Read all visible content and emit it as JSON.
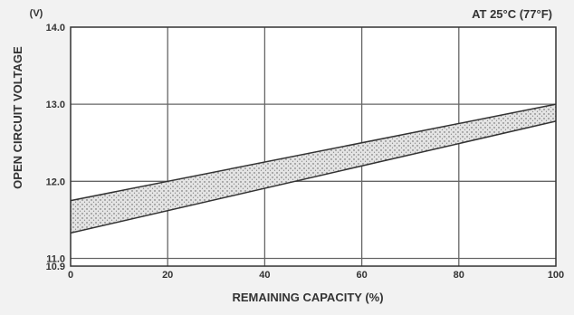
{
  "chart_data": {
    "type": "area",
    "title": "AT 25°C (77°F)",
    "xlabel": "REMAINING CAPACITY (%)",
    "ylabel": "OPEN CIRCUIT VOLTAGE",
    "yunit": "(V)",
    "xlim": [
      0,
      100
    ],
    "ylim": [
      10.9,
      14.0
    ],
    "x_ticks": [
      {
        "value": 0,
        "label": "0"
      },
      {
        "value": 20,
        "label": "20"
      },
      {
        "value": 40,
        "label": "40"
      },
      {
        "value": 60,
        "label": "60"
      },
      {
        "value": 80,
        "label": "80"
      },
      {
        "value": 100,
        "label": "100"
      }
    ],
    "y_ticks": [
      {
        "value": 10.9,
        "label": "10.9"
      },
      {
        "value": 11.0,
        "label": "11.0"
      },
      {
        "value": 12.0,
        "label": "12.0"
      },
      {
        "value": 13.0,
        "label": "13.0"
      },
      {
        "value": 14.0,
        "label": "14.0"
      }
    ],
    "band": {
      "x": [
        0,
        100
      ],
      "upper": [
        11.75,
        13.0
      ],
      "lower": [
        11.33,
        12.78
      ]
    },
    "grid": true,
    "colors": {
      "band_fill": "#dcdcdc",
      "line": "#333333",
      "grid": "#666666"
    }
  }
}
